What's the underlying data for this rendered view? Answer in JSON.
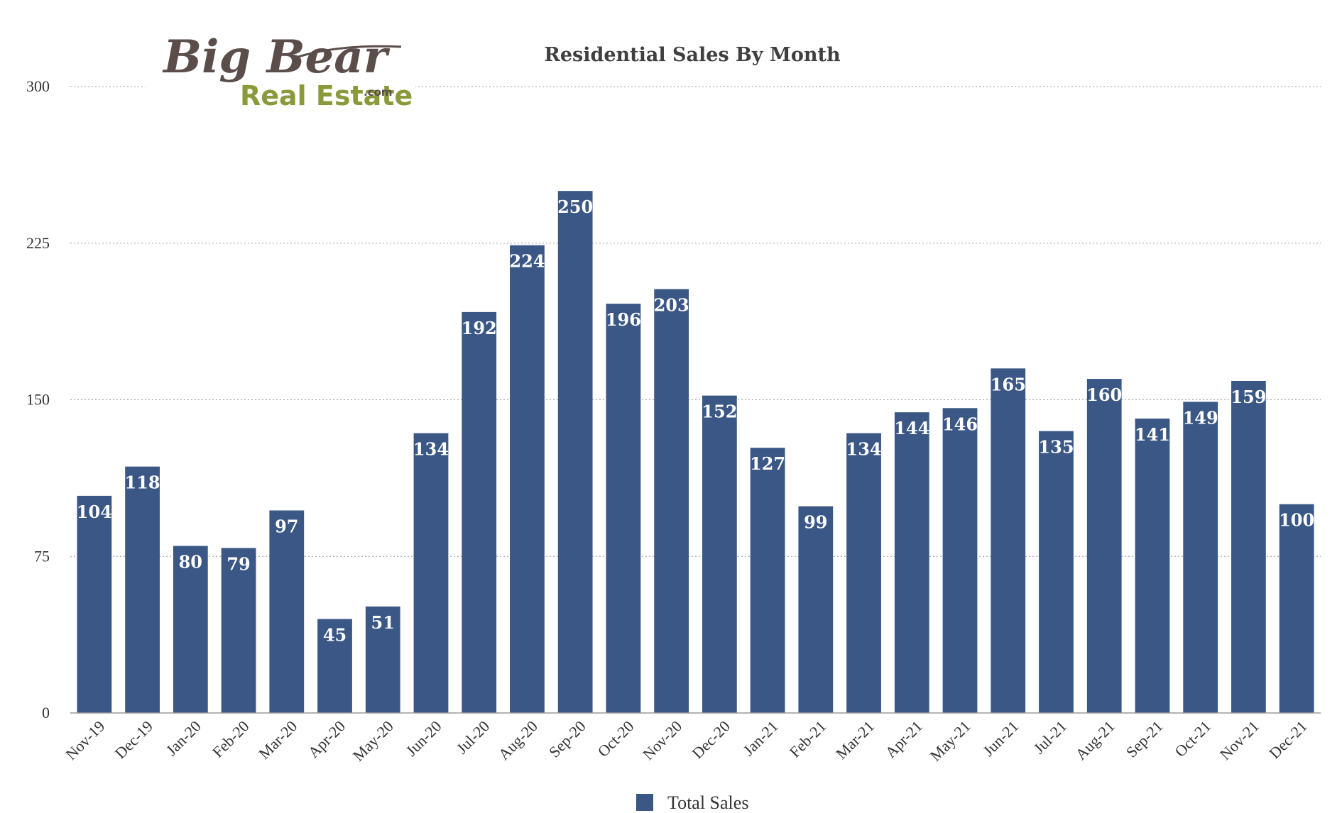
{
  "logo": {
    "line1": "Big Bear",
    "line2": "Real Estate",
    "suffix": ".com"
  },
  "colors": {
    "bar": "#3a5786",
    "grid": "#9a9a9a",
    "axis": "#9a9a9a",
    "logo_brown": "#5a4d4a",
    "logo_green": "#8a9a3b"
  },
  "chart_data": {
    "type": "bar",
    "title": "Residential Sales By Month",
    "xlabel": "",
    "ylabel": "",
    "ylim": [
      0,
      300
    ],
    "yticks": [
      0,
      75,
      150,
      225,
      300
    ],
    "grid": true,
    "legend_position": "bottom",
    "categories": [
      "Nov-19",
      "Dec-19",
      "Jan-20",
      "Feb-20",
      "Mar-20",
      "Apr-20",
      "May-20",
      "Jun-20",
      "Jul-20",
      "Aug-20",
      "Sep-20",
      "Oct-20",
      "Nov-20",
      "Dec-20",
      "Jan-21",
      "Feb-21",
      "Mar-21",
      "Apr-21",
      "May-21",
      "Jun-21",
      "Jul-21",
      "Aug-21",
      "Sep-21",
      "Oct-21",
      "Nov-21",
      "Dec-21"
    ],
    "series": [
      {
        "name": "Total Sales",
        "values": [
          104,
          118,
          80,
          79,
          97,
          45,
          51,
          134,
          192,
          224,
          250,
          196,
          203,
          152,
          127,
          99,
          134,
          144,
          146,
          165,
          135,
          160,
          141,
          149,
          159,
          100
        ]
      }
    ]
  }
}
